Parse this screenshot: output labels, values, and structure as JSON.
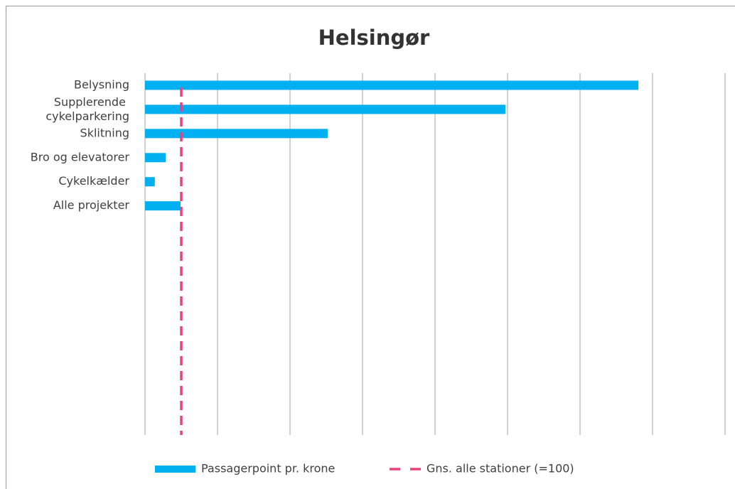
{
  "chart_data": {
    "type": "bar",
    "orientation": "horizontal",
    "title": "Helsingør",
    "categories": [
      "Belysning",
      "Supplerende cykelparkering",
      "Sklitning",
      "Bro og elevatorer",
      "Cykelkælder",
      "Alle projekter",
      null,
      null,
      null,
      null,
      null,
      null,
      null,
      null,
      null
    ],
    "series": [
      {
        "name": "Passagerpoint pr. krone",
        "color": "#00b0f0",
        "values": [
          1361,
          994,
          504,
          57,
          27,
          98,
          null,
          null,
          null,
          null,
          null,
          null,
          null,
          null,
          null
        ]
      }
    ],
    "reference": {
      "name": "Gns. alle stationer (=100)",
      "value": 100,
      "color": "#e8417f"
    },
    "xlim": [
      0,
      1600
    ],
    "xticks": [
      0,
      200,
      400,
      600,
      800,
      1000,
      1200,
      1400,
      1600
    ],
    "grid": true,
    "legend": "bottom"
  }
}
